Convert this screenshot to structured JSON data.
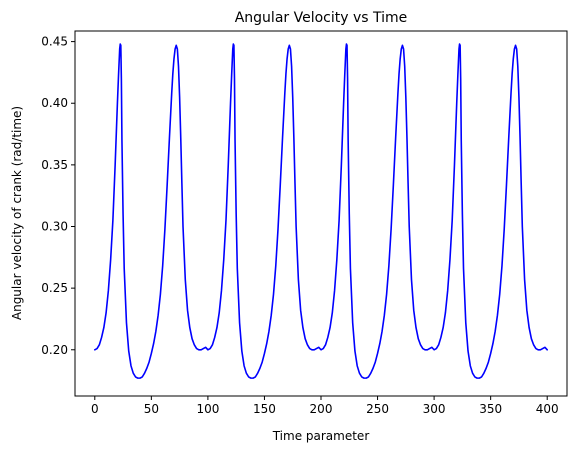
{
  "chart_data": {
    "type": "line",
    "title": "Angular Velocity vs Time",
    "xlabel": "Time parameter",
    "ylabel": "Angular velocity of crank (rad/time)",
    "xlim": [
      -17.5,
      417.5
    ],
    "ylim": [
      0.1625,
      0.4586
    ],
    "xticks": [
      0,
      50,
      100,
      150,
      200,
      250,
      300,
      350,
      400
    ],
    "xtick_labels": [
      "0",
      "50",
      "100",
      "150",
      "200",
      "250",
      "300",
      "350",
      "400"
    ],
    "yticks": [
      0.2,
      0.25,
      0.3,
      0.35,
      0.4,
      0.45
    ],
    "ytick_labels": [
      "0.20",
      "0.25",
      "0.30",
      "0.35",
      "0.40",
      "0.45"
    ],
    "grid": false,
    "legend": "none",
    "series": [
      {
        "color": "#0000ff",
        "x": [
          0,
          2,
          4,
          6,
          8,
          10,
          12,
          14,
          16,
          18,
          20,
          21,
          22,
          22.5,
          23,
          23.5,
          24,
          25,
          26,
          28,
          30,
          32,
          34,
          36,
          38,
          40,
          42,
          44,
          46,
          48,
          50,
          52,
          54,
          56,
          58,
          60,
          62,
          64,
          66,
          68,
          69,
          70,
          71,
          72,
          73,
          74,
          75,
          76,
          77,
          78,
          80,
          82,
          84,
          86,
          88,
          90,
          92,
          94,
          96,
          98,
          100,
          102,
          104,
          106,
          108,
          110,
          112,
          114,
          116,
          118,
          120,
          121,
          122,
          122.5,
          123,
          123.5,
          124,
          125,
          126,
          128,
          130,
          132,
          134,
          136,
          138,
          140,
          142,
          144,
          146,
          148,
          150,
          152,
          154,
          156,
          158,
          160,
          162,
          164,
          166,
          168,
          169,
          170,
          171,
          172,
          173,
          174,
          175,
          176,
          177,
          178,
          180,
          182,
          184,
          186,
          188,
          190,
          192,
          194,
          196,
          198,
          200,
          202,
          204,
          206,
          208,
          210,
          212,
          214,
          216,
          218,
          220,
          221,
          222,
          222.5,
          223,
          223.5,
          224,
          225,
          226,
          228,
          230,
          232,
          234,
          236,
          238,
          240,
          242,
          244,
          246,
          248,
          250,
          252,
          254,
          256,
          258,
          260,
          262,
          264,
          266,
          268,
          269,
          270,
          271,
          272,
          273,
          274,
          275,
          276,
          277,
          278,
          280,
          282,
          284,
          286,
          288,
          290,
          292,
          294,
          296,
          298,
          300,
          302,
          304,
          306,
          308,
          310,
          312,
          314,
          316,
          318,
          320,
          321,
          322,
          322.5,
          323,
          323.5,
          324,
          325,
          326,
          328,
          330,
          332,
          334,
          336,
          338,
          340,
          342,
          344,
          346,
          348,
          350,
          352,
          354,
          356,
          358,
          360,
          362,
          364,
          366,
          368,
          369,
          370,
          371,
          372,
          373,
          374,
          375,
          376,
          377,
          378,
          380,
          382,
          384,
          386,
          388,
          390,
          392,
          394,
          396,
          398,
          400
        ],
        "y": [
          0.2,
          0.201,
          0.204,
          0.21,
          0.218,
          0.23,
          0.248,
          0.273,
          0.305,
          0.35,
          0.4,
          0.423,
          0.444,
          0.448,
          0.447,
          0.42,
          0.37,
          0.31,
          0.266,
          0.222,
          0.199,
          0.187,
          0.181,
          0.178,
          0.177,
          0.177,
          0.178,
          0.181,
          0.185,
          0.19,
          0.197,
          0.205,
          0.215,
          0.228,
          0.245,
          0.268,
          0.298,
          0.334,
          0.372,
          0.408,
          0.424,
          0.436,
          0.444,
          0.447,
          0.444,
          0.43,
          0.405,
          0.372,
          0.335,
          0.3,
          0.257,
          0.232,
          0.218,
          0.209,
          0.204,
          0.201,
          0.2,
          0.2,
          0.201,
          0.202,
          0.2,
          0.201,
          0.204,
          0.21,
          0.218,
          0.23,
          0.248,
          0.273,
          0.305,
          0.35,
          0.4,
          0.423,
          0.444,
          0.448,
          0.447,
          0.42,
          0.37,
          0.31,
          0.266,
          0.222,
          0.199,
          0.187,
          0.181,
          0.178,
          0.177,
          0.177,
          0.178,
          0.181,
          0.185,
          0.19,
          0.197,
          0.205,
          0.215,
          0.228,
          0.245,
          0.268,
          0.298,
          0.334,
          0.372,
          0.408,
          0.424,
          0.436,
          0.444,
          0.447,
          0.444,
          0.43,
          0.405,
          0.372,
          0.335,
          0.3,
          0.257,
          0.232,
          0.218,
          0.209,
          0.204,
          0.201,
          0.2,
          0.2,
          0.201,
          0.202,
          0.2,
          0.201,
          0.204,
          0.21,
          0.218,
          0.23,
          0.248,
          0.273,
          0.305,
          0.35,
          0.4,
          0.423,
          0.444,
          0.448,
          0.447,
          0.42,
          0.37,
          0.31,
          0.266,
          0.222,
          0.199,
          0.187,
          0.181,
          0.178,
          0.177,
          0.177,
          0.178,
          0.181,
          0.185,
          0.19,
          0.197,
          0.205,
          0.215,
          0.228,
          0.245,
          0.268,
          0.298,
          0.334,
          0.372,
          0.408,
          0.424,
          0.436,
          0.444,
          0.447,
          0.444,
          0.43,
          0.405,
          0.372,
          0.335,
          0.3,
          0.257,
          0.232,
          0.218,
          0.209,
          0.204,
          0.201,
          0.2,
          0.2,
          0.201,
          0.202,
          0.2,
          0.201,
          0.204,
          0.21,
          0.218,
          0.23,
          0.248,
          0.273,
          0.305,
          0.35,
          0.4,
          0.423,
          0.444,
          0.448,
          0.447,
          0.42,
          0.37,
          0.31,
          0.266,
          0.222,
          0.199,
          0.187,
          0.181,
          0.178,
          0.177,
          0.177,
          0.178,
          0.181,
          0.185,
          0.19,
          0.197,
          0.205,
          0.215,
          0.228,
          0.245,
          0.268,
          0.298,
          0.334,
          0.372,
          0.408,
          0.424,
          0.436,
          0.444,
          0.447,
          0.444,
          0.43,
          0.405,
          0.372,
          0.335,
          0.3,
          0.257,
          0.232,
          0.218,
          0.209,
          0.204,
          0.201,
          0.2,
          0.2,
          0.201,
          0.202,
          0.2
        ]
      }
    ]
  }
}
